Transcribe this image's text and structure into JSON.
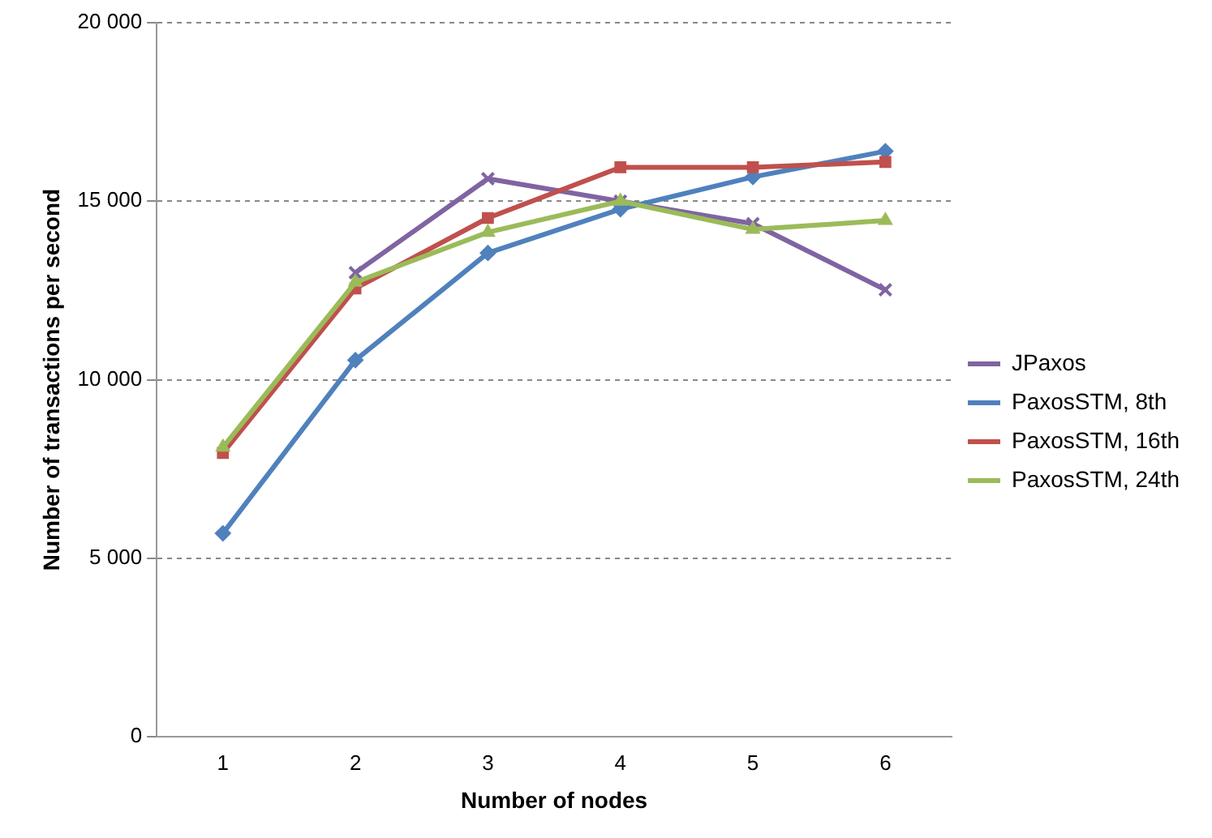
{
  "chart_data": {
    "type": "line",
    "xlabel": "Number of nodes",
    "ylabel": "Number of transactions per second",
    "categories": [
      "1",
      "2",
      "3",
      "4",
      "5",
      "6"
    ],
    "series": [
      {
        "name": "JPaxos",
        "color": "#8064a2",
        "marker": "cross",
        "values": [
          null,
          13000,
          15630,
          15000,
          14370,
          12520
        ]
      },
      {
        "name": "PaxosSTM, 8th",
        "color": "#4f81bd",
        "marker": "diamond",
        "values": [
          5700,
          10550,
          13550,
          14780,
          15680,
          16400
        ]
      },
      {
        "name": "PaxosSTM, 16th",
        "color": "#c0504d",
        "marker": "square",
        "values": [
          7950,
          12560,
          14530,
          15950,
          15950,
          16100
        ]
      },
      {
        "name": "PaxosSTM, 24th",
        "color": "#9bbb59",
        "marker": "triangle",
        "values": [
          8110,
          12730,
          14130,
          15000,
          14210,
          14460
        ]
      }
    ],
    "ylim": [
      0,
      20000
    ],
    "yticks": [
      {
        "value": 0,
        "label": "0"
      },
      {
        "value": 5000,
        "label": "5 000"
      },
      {
        "value": 10000,
        "label": "10 000"
      },
      {
        "value": 15000,
        "label": "15 000"
      },
      {
        "value": 20000,
        "label": "20 000"
      }
    ],
    "grid": "y",
    "legend": "right",
    "line_style": "solid"
  }
}
